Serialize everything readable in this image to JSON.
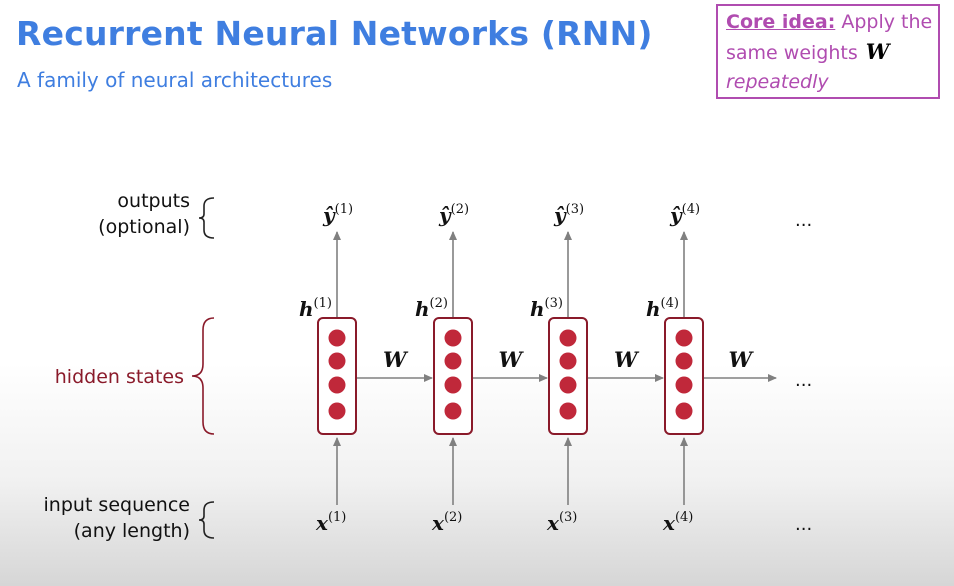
{
  "title": "Recurrent Neural Networks (RNN)",
  "subtitle": "A family of neural architectures",
  "core_idea": {
    "label": "Core idea:",
    "text": "Apply the same weights",
    "weight_symbol": "W",
    "emphasis": "repeatedly"
  },
  "row_labels": {
    "outputs_line1": "outputs",
    "outputs_line2": "(optional)",
    "hidden": "hidden states",
    "input_line1": "input sequence",
    "input_line2": "(any length)"
  },
  "timesteps": [
    {
      "output": "ŷ",
      "hidden": "h",
      "input": "x",
      "index": "(1)"
    },
    {
      "output": "ŷ",
      "hidden": "h",
      "input": "x",
      "index": "(2)"
    },
    {
      "output": "ŷ",
      "hidden": "h",
      "input": "x",
      "index": "(3)"
    },
    {
      "output": "ŷ",
      "hidden": "h",
      "input": "x",
      "index": "(4)"
    }
  ],
  "weight_label": "W",
  "ellipsis": "...",
  "colors": {
    "title": "#3f7ee0",
    "core_box": "#b04cb0",
    "hidden_label": "#8a1a2a",
    "cell_border": "#8a1a2a",
    "neuron_fill": "#c0283a",
    "arrow": "#808080"
  }
}
